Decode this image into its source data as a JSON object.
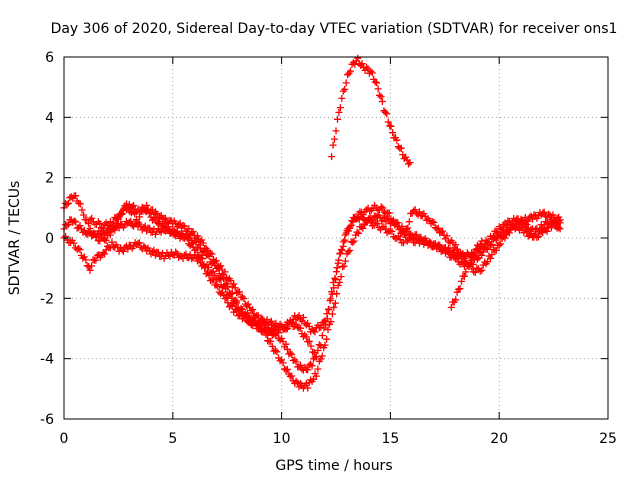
{
  "chart_data": {
    "type": "scatter",
    "title": "Day 306 of 2020, Sidereal Day-to-day VTEC variation (SDTVAR) for receiver ons1",
    "xlabel": "GPS time / hours",
    "ylabel": "SDTVAR / TECUs",
    "xlim": [
      0,
      25
    ],
    "ylim": [
      -6,
      6
    ],
    "xticks": [
      0,
      5,
      10,
      15,
      20,
      25
    ],
    "yticks": [
      -6,
      -4,
      -2,
      0,
      2,
      4,
      6
    ],
    "xtick_labels": [
      "0",
      "5",
      "10",
      "15",
      "20",
      "25"
    ],
    "ytick_labels": [
      "-6",
      "-4",
      "-2",
      "0",
      "2",
      "4",
      "6"
    ],
    "grid": true,
    "marker": "+",
    "color": "#ff0000",
    "series": [
      {
        "points": [
          [
            0.0,
            0.3
          ],
          [
            0.2,
            0.5
          ],
          [
            0.4,
            0.6
          ],
          [
            0.6,
            0.4
          ],
          [
            1.0,
            0.2
          ],
          [
            1.4,
            0.1
          ],
          [
            1.8,
            0.2
          ],
          [
            2.2,
            0.3
          ],
          [
            2.6,
            0.4
          ],
          [
            3.0,
            0.5
          ],
          [
            3.4,
            0.4
          ],
          [
            3.8,
            0.3
          ],
          [
            4.2,
            0.2
          ],
          [
            4.6,
            0.3
          ],
          [
            5.0,
            0.2
          ],
          [
            5.4,
            0.1
          ],
          [
            5.8,
            0.0
          ],
          [
            6.2,
            -0.3
          ],
          [
            6.6,
            -0.6
          ],
          [
            7.0,
            -1.0
          ],
          [
            7.4,
            -1.5
          ],
          [
            7.8,
            -2.0
          ],
          [
            8.2,
            -2.5
          ],
          [
            8.6,
            -2.8
          ],
          [
            9.0,
            -3.0
          ],
          [
            9.5,
            -3.2
          ],
          [
            10.0,
            -3.0
          ],
          [
            10.4,
            -2.8
          ],
          [
            10.8,
            -3.0
          ],
          [
            11.2,
            -3.4
          ],
          [
            11.5,
            -3.8
          ]
        ]
      },
      {
        "points": [
          [
            0.0,
            1.0
          ],
          [
            0.2,
            1.2
          ],
          [
            0.4,
            1.4
          ],
          [
            0.6,
            1.3
          ],
          [
            0.9,
            0.8
          ],
          [
            1.2,
            0.3
          ],
          [
            1.5,
            0.0
          ],
          [
            1.8,
            -0.1
          ],
          [
            2.2,
            0.2
          ],
          [
            2.5,
            0.6
          ],
          [
            2.8,
            1.1
          ],
          [
            3.1,
            0.9
          ],
          [
            3.4,
            0.6
          ],
          [
            3.7,
            1.0
          ],
          [
            4.0,
            0.7
          ],
          [
            4.4,
            0.5
          ],
          [
            4.8,
            0.3
          ],
          [
            5.2,
            0.1
          ],
          [
            5.6,
            0.0
          ],
          [
            6.0,
            -0.4
          ],
          [
            6.5,
            -0.9
          ],
          [
            7.0,
            -1.3
          ],
          [
            7.5,
            -1.8
          ],
          [
            8.0,
            -2.3
          ],
          [
            8.5,
            -2.6
          ],
          [
            9.0,
            -2.9
          ],
          [
            9.5,
            -3.5
          ],
          [
            10.0,
            -4.1
          ],
          [
            10.4,
            -4.6
          ],
          [
            10.8,
            -4.9
          ],
          [
            11.2,
            -4.9
          ],
          [
            11.6,
            -4.5
          ],
          [
            12.0,
            -3.5
          ],
          [
            12.4,
            -2.3
          ],
          [
            12.8,
            -1.0
          ],
          [
            13.2,
            -0.2
          ],
          [
            13.6,
            0.3
          ],
          [
            14.0,
            0.6
          ],
          [
            14.4,
            0.7
          ],
          [
            14.8,
            0.6
          ],
          [
            15.2,
            0.5
          ],
          [
            15.6,
            0.3
          ],
          [
            16.0,
            0.1
          ],
          [
            16.4,
            0.0
          ],
          [
            16.8,
            -0.2
          ],
          [
            17.2,
            -0.3
          ],
          [
            17.6,
            -0.5
          ],
          [
            18.0,
            -0.7
          ],
          [
            18.4,
            -0.9
          ],
          [
            18.8,
            -0.8
          ],
          [
            19.2,
            -0.5
          ],
          [
            19.6,
            -0.2
          ],
          [
            20.0,
            0.1
          ],
          [
            20.4,
            0.3
          ],
          [
            20.8,
            0.4
          ],
          [
            21.2,
            0.2
          ],
          [
            21.6,
            0.0
          ],
          [
            22.0,
            0.2
          ],
          [
            22.4,
            0.4
          ],
          [
            22.8,
            0.5
          ]
        ]
      },
      {
        "points": [
          [
            0.0,
            0.0
          ],
          [
            0.3,
            -0.1
          ],
          [
            0.6,
            -0.3
          ],
          [
            1.2,
            -1.0
          ],
          [
            1.4,
            -0.7
          ],
          [
            1.8,
            -0.5
          ],
          [
            2.2,
            -0.2
          ],
          [
            2.6,
            -0.4
          ],
          [
            3.0,
            -0.3
          ],
          [
            3.4,
            -0.2
          ],
          [
            3.8,
            -0.4
          ],
          [
            4.2,
            -0.5
          ],
          [
            4.6,
            -0.6
          ],
          [
            5.0,
            -0.5
          ],
          [
            5.4,
            -0.6
          ],
          [
            5.8,
            -0.6
          ],
          [
            6.2,
            -0.7
          ],
          [
            6.6,
            -1.2
          ],
          [
            7.0,
            -1.6
          ],
          [
            7.4,
            -2.0
          ],
          [
            7.8,
            -2.4
          ],
          [
            8.2,
            -2.6
          ],
          [
            8.6,
            -2.8
          ],
          [
            9.0,
            -2.8
          ],
          [
            9.4,
            -3.0
          ],
          [
            9.8,
            -3.2
          ],
          [
            10.2,
            -3.6
          ],
          [
            10.6,
            -4.1
          ],
          [
            11.0,
            -4.4
          ],
          [
            11.4,
            -4.2
          ],
          [
            11.8,
            -3.5
          ],
          [
            12.1,
            -2.6
          ],
          [
            12.4,
            -1.6
          ],
          [
            12.7,
            -0.5
          ],
          [
            13.0,
            0.2
          ],
          [
            13.3,
            0.6
          ],
          [
            13.6,
            0.8
          ],
          [
            13.9,
            0.9
          ],
          [
            14.2,
            1.0
          ],
          [
            14.5,
            1.0
          ],
          [
            14.8,
            0.9
          ],
          [
            15.1,
            0.6
          ],
          [
            15.4,
            0.3
          ],
          [
            15.7,
            0.0
          ],
          [
            16.0,
            -0.1
          ],
          [
            16.4,
            -0.1
          ],
          [
            16.8,
            -0.2
          ],
          [
            17.2,
            -0.3
          ],
          [
            17.6,
            -0.4
          ],
          [
            18.0,
            -0.5
          ],
          [
            18.4,
            -0.6
          ],
          [
            18.8,
            -0.5
          ],
          [
            19.2,
            -0.3
          ],
          [
            19.6,
            0.0
          ],
          [
            20.0,
            0.3
          ],
          [
            20.4,
            0.5
          ],
          [
            20.8,
            0.6
          ],
          [
            21.2,
            0.4
          ],
          [
            21.6,
            0.2
          ],
          [
            22.0,
            0.4
          ],
          [
            22.4,
            0.6
          ],
          [
            22.8,
            0.3
          ]
        ]
      },
      {
        "points": [
          [
            1.2,
            0.6
          ],
          [
            1.5,
            0.5
          ],
          [
            1.8,
            0.4
          ],
          [
            2.2,
            0.5
          ],
          [
            2.6,
            0.8
          ],
          [
            3.0,
            1.1
          ],
          [
            3.4,
            0.9
          ],
          [
            3.8,
            1.0
          ],
          [
            4.2,
            0.8
          ],
          [
            4.6,
            0.6
          ],
          [
            5.0,
            0.5
          ],
          [
            5.4,
            0.4
          ],
          [
            5.8,
            0.2
          ],
          [
            6.2,
            0.0
          ],
          [
            6.6,
            -0.4
          ],
          [
            7.0,
            -0.8
          ],
          [
            7.4,
            -1.2
          ],
          [
            7.8,
            -1.6
          ],
          [
            8.2,
            -2.0
          ],
          [
            8.6,
            -2.4
          ],
          [
            9.0,
            -2.7
          ],
          [
            9.4,
            -2.8
          ],
          [
            9.8,
            -2.9
          ],
          [
            10.2,
            -3.0
          ],
          [
            10.6,
            -2.6
          ],
          [
            11.0,
            -2.7
          ],
          [
            11.4,
            -3.1
          ],
          [
            12.0,
            -2.8
          ],
          [
            12.3,
            -1.8
          ],
          [
            12.6,
            -0.8
          ],
          [
            12.9,
            0.0
          ],
          [
            13.2,
            0.5
          ],
          [
            13.5,
            0.7
          ],
          [
            13.8,
            0.6
          ],
          [
            14.1,
            0.5
          ],
          [
            14.4,
            0.4
          ],
          [
            14.7,
            0.3
          ],
          [
            15.0,
            0.2
          ],
          [
            15.3,
            0.0
          ],
          [
            15.6,
            -0.1
          ],
          [
            16.0,
            0.9
          ],
          [
            16.4,
            0.8
          ],
          [
            16.8,
            0.6
          ],
          [
            17.2,
            0.3
          ],
          [
            17.6,
            0.0
          ],
          [
            18.0,
            -0.3
          ],
          [
            18.3,
            -0.6
          ],
          [
            18.6,
            -0.9
          ],
          [
            18.9,
            -1.1
          ],
          [
            19.2,
            -1.0
          ],
          [
            19.6,
            -0.6
          ],
          [
            20.0,
            -0.2
          ],
          [
            20.4,
            0.2
          ],
          [
            20.8,
            0.5
          ],
          [
            21.2,
            0.6
          ],
          [
            21.6,
            0.7
          ],
          [
            22.0,
            0.8
          ],
          [
            22.4,
            0.7
          ],
          [
            22.8,
            0.6
          ]
        ]
      },
      {
        "points": [
          [
            12.3,
            2.7
          ],
          [
            12.5,
            3.6
          ],
          [
            12.7,
            4.4
          ],
          [
            12.9,
            5.0
          ],
          [
            13.1,
            5.5
          ],
          [
            13.3,
            5.8
          ],
          [
            13.5,
            5.9
          ],
          [
            13.7,
            5.7
          ],
          [
            13.9,
            5.6
          ],
          [
            14.1,
            5.5
          ],
          [
            14.3,
            5.2
          ],
          [
            14.5,
            4.8
          ],
          [
            14.7,
            4.3
          ],
          [
            14.9,
            3.9
          ],
          [
            15.1,
            3.5
          ],
          [
            15.3,
            3.2
          ],
          [
            15.5,
            2.9
          ],
          [
            15.7,
            2.6
          ],
          [
            15.9,
            2.5
          ]
        ]
      },
      {
        "points": [
          [
            17.8,
            -2.3
          ],
          [
            18.0,
            -2.0
          ],
          [
            18.2,
            -1.6
          ],
          [
            18.4,
            -1.2
          ],
          [
            18.6,
            -0.9
          ],
          [
            18.8,
            -0.6
          ],
          [
            19.0,
            -0.3
          ],
          [
            19.2,
            -0.1
          ]
        ]
      }
    ]
  }
}
